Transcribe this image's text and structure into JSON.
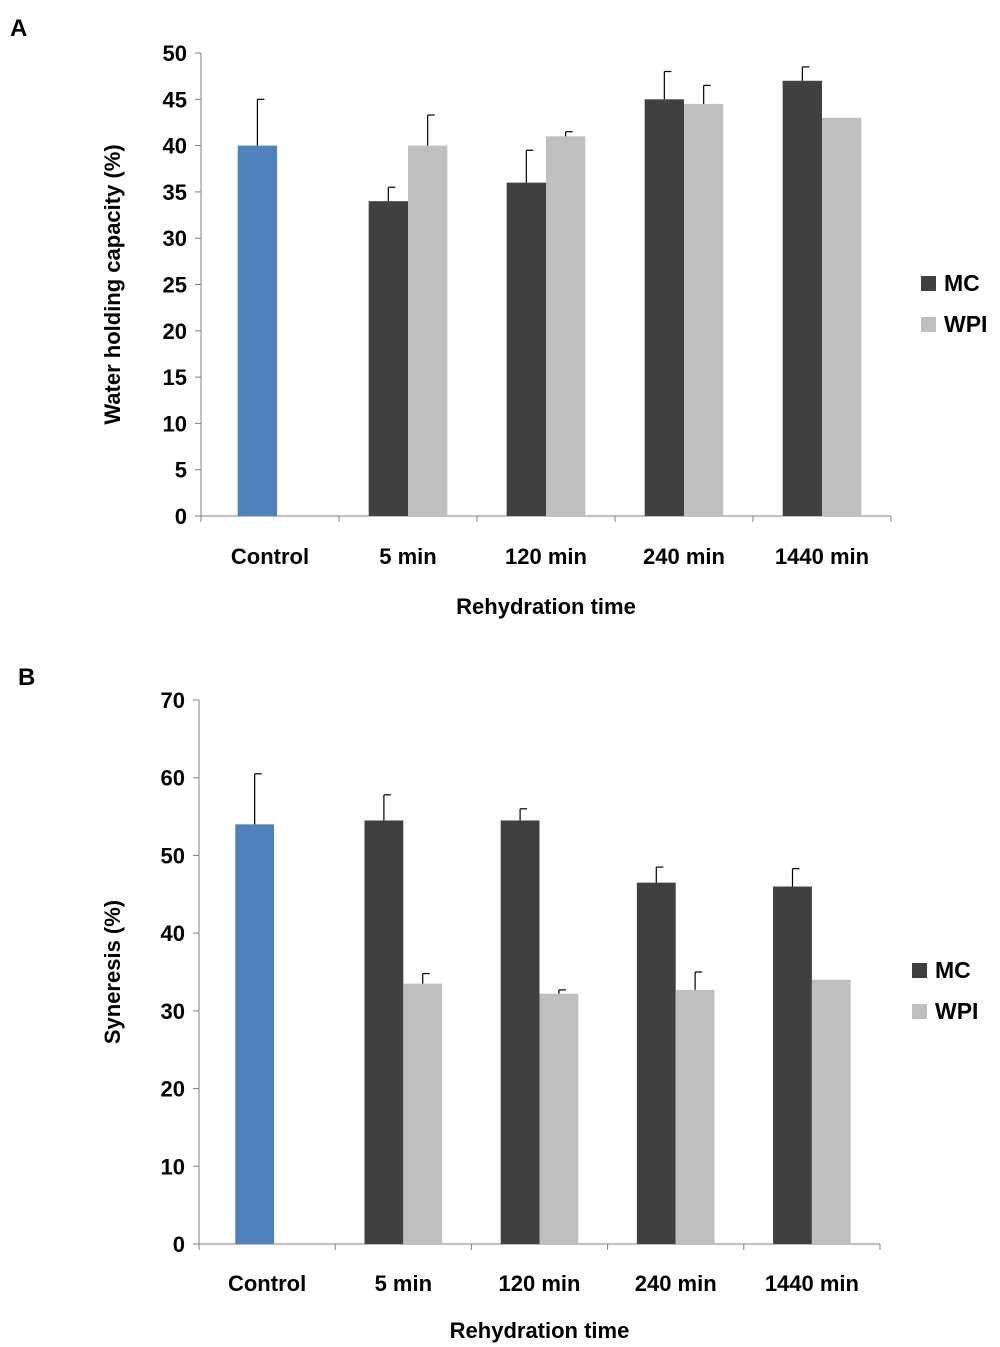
{
  "colors": {
    "control": "#4f81bd",
    "mc": "#404040",
    "wpi": "#bfbfbf",
    "axis": "#808080",
    "error": "#000000"
  },
  "chart_data": [
    {
      "panel_label": "A",
      "type": "bar",
      "categories": [
        "Control",
        "5 min",
        "120 min",
        "240 min",
        "1440 min"
      ],
      "xlabel": "Rehydration time",
      "ylabel": "Water holding capacity (%)",
      "ylim": [
        0,
        50
      ],
      "yticks": [
        0,
        5,
        10,
        15,
        20,
        25,
        30,
        35,
        40,
        45,
        50
      ],
      "legend_position": "right",
      "control": {
        "value": 40,
        "error": 5
      },
      "series": [
        {
          "name": "MC",
          "values": [
            null,
            34,
            36,
            45,
            47
          ],
          "errors": [
            null,
            1.5,
            3.5,
            3,
            1.5
          ]
        },
        {
          "name": "WPI",
          "values": [
            null,
            40,
            41,
            44.5,
            43
          ],
          "errors": [
            null,
            3.3,
            0.5,
            2,
            0
          ]
        }
      ]
    },
    {
      "panel_label": "B",
      "type": "bar",
      "categories": [
        "Control",
        "5 min",
        "120 min",
        "240 min",
        "1440 min"
      ],
      "xlabel": "Rehydration time",
      "ylabel": "Syneresis (%)",
      "ylim": [
        0,
        70
      ],
      "yticks": [
        0,
        10,
        20,
        30,
        40,
        50,
        60,
        70
      ],
      "legend_position": "right",
      "control": {
        "value": 54,
        "error": 6.5
      },
      "series": [
        {
          "name": "MC",
          "values": [
            null,
            54.5,
            54.5,
            46.5,
            46
          ],
          "errors": [
            null,
            3.3,
            1.5,
            2,
            2.3
          ]
        },
        {
          "name": "WPI",
          "values": [
            null,
            33.5,
            32.2,
            32.7,
            34
          ],
          "errors": [
            null,
            1.3,
            0.5,
            2.3,
            0
          ]
        }
      ]
    }
  ]
}
